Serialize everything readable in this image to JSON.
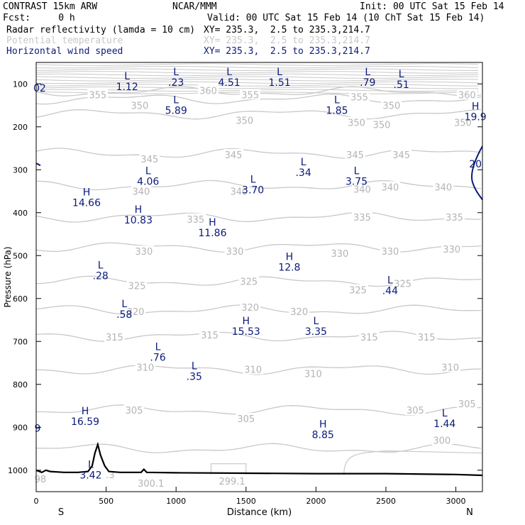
{
  "header": {
    "model": "CONTRAST 15km ARW",
    "center": "NCAR/MMM",
    "init": "Init: 00 UTC Sat 15 Feb 14",
    "fcst": "Fcst:     0 h",
    "valid": "Valid: 00 UTC Sat 15 Feb 14 (10 ChT Sat 15 Feb 14)",
    "fields": [
      {
        "label": "Radar reflectivity (lamda = 10 cm)",
        "xy": "XY= 235.3,  2.5 to 235.3,214.7",
        "color": "#000000"
      },
      {
        "label": "Potential temperature",
        "xy": "XY= 235.3,  2.5 to 235.3,214.7",
        "color": "#c8c8c8"
      },
      {
        "label": "Horizontal wind speed",
        "xy": "XY= 235.3,  2.5 to 235.3,214.7",
        "color": "#0a1a7a"
      }
    ]
  },
  "chart_data": {
    "type": "cross-section contour",
    "xlabel": "Distance (km)",
    "ylabel": "Pressure (hPa)",
    "xlim": [
      0,
      3190
    ],
    "ylim": [
      1050,
      50
    ],
    "x_ticks": [
      0,
      500,
      1000,
      1500,
      2000,
      2500,
      3000
    ],
    "y_ticks": [
      100,
      200,
      300,
      400,
      500,
      600,
      700,
      800,
      900,
      1000
    ],
    "x_end_labels": {
      "left": "S",
      "right": "N"
    },
    "theta_contours": [
      {
        "value": 360,
        "p": 118
      },
      {
        "value": 355,
        "p": 135
      },
      {
        "value": 350,
        "p": 170
      },
      {
        "value": 345,
        "p": 262
      },
      {
        "value": 340,
        "p": 337
      },
      {
        "value": 335,
        "p": 410
      },
      {
        "value": 330,
        "p": 480
      },
      {
        "value": 325,
        "p": 560
      },
      {
        "value": 320,
        "p": 627
      },
      {
        "value": 315,
        "p": 688
      },
      {
        "value": 310,
        "p": 765
      },
      {
        "value": 305,
        "p": 860
      },
      {
        "value": 300,
        "p": 950
      }
    ],
    "theta_labels": [
      {
        "text": "355",
        "x": 440,
        "p": 125
      },
      {
        "text": "360",
        "x": 1230,
        "p": 115
      },
      {
        "text": "355",
        "x": 1530,
        "p": 125
      },
      {
        "text": "355",
        "x": 2310,
        "p": 130
      },
      {
        "text": "350",
        "x": 2540,
        "p": 150
      },
      {
        "text": "360",
        "x": 3080,
        "p": 125
      },
      {
        "text": "350",
        "x": 740,
        "p": 150
      },
      {
        "text": "350",
        "x": 1490,
        "p": 185
      },
      {
        "text": "350",
        "x": 2290,
        "p": 190
      },
      {
        "text": "350",
        "x": 2470,
        "p": 195
      },
      {
        "text": "350",
        "x": 3050,
        "p": 190
      },
      {
        "text": "345",
        "x": 810,
        "p": 275
      },
      {
        "text": "345",
        "x": 1410,
        "p": 265
      },
      {
        "text": "345",
        "x": 2280,
        "p": 265
      },
      {
        "text": "345",
        "x": 2610,
        "p": 265
      },
      {
        "text": "340",
        "x": 750,
        "p": 350
      },
      {
        "text": "340",
        "x": 1450,
        "p": 350
      },
      {
        "text": "340",
        "x": 2330,
        "p": 345
      },
      {
        "text": "340",
        "x": 2530,
        "p": 340
      },
      {
        "text": "340",
        "x": 2910,
        "p": 340
      },
      {
        "text": "335",
        "x": 1140,
        "p": 415
      },
      {
        "text": "335",
        "x": 2330,
        "p": 410
      },
      {
        "text": "335",
        "x": 2990,
        "p": 410
      },
      {
        "text": "330",
        "x": 770,
        "p": 490
      },
      {
        "text": "330",
        "x": 1420,
        "p": 490
      },
      {
        "text": "330",
        "x": 2170,
        "p": 495
      },
      {
        "text": "330",
        "x": 2530,
        "p": 490
      },
      {
        "text": "330",
        "x": 2970,
        "p": 485
      },
      {
        "text": "325",
        "x": 720,
        "p": 570
      },
      {
        "text": "325",
        "x": 1520,
        "p": 560
      },
      {
        "text": "325",
        "x": 2300,
        "p": 580
      },
      {
        "text": "325",
        "x": 2620,
        "p": 565
      },
      {
        "text": "320",
        "x": 710,
        "p": 630
      },
      {
        "text": "320",
        "x": 1530,
        "p": 620
      },
      {
        "text": "320",
        "x": 1880,
        "p": 630
      },
      {
        "text": "315",
        "x": 560,
        "p": 690
      },
      {
        "text": "315",
        "x": 1240,
        "p": 685
      },
      {
        "text": "315",
        "x": 2380,
        "p": 690
      },
      {
        "text": "315",
        "x": 2790,
        "p": 690
      },
      {
        "text": "310",
        "x": 780,
        "p": 760
      },
      {
        "text": "310",
        "x": 1550,
        "p": 765
      },
      {
        "text": "310",
        "x": 1980,
        "p": 775
      },
      {
        "text": "310",
        "x": 2960,
        "p": 760
      },
      {
        "text": "305",
        "x": 700,
        "p": 860
      },
      {
        "text": "305",
        "x": 1500,
        "p": 880
      },
      {
        "text": "305",
        "x": 2710,
        "p": 860
      },
      {
        "text": "305",
        "x": 3080,
        "p": 845
      },
      {
        "text": "300",
        "x": 2900,
        "p": 930
      },
      {
        "text": ".3",
        "x": 530,
        "p": 1010
      },
      {
        "text": "300.1",
        "x": 820,
        "p": 1030
      },
      {
        "text": "299.1",
        "x": 1400,
        "p": 1025
      },
      {
        "text": "98",
        "x": 30,
        "p": 1020
      }
    ],
    "wind_extrema": [
      {
        "type": "L",
        "value": "1.12",
        "x": 650,
        "p": 90
      },
      {
        "type": "L",
        "value": ".23",
        "x": 1000,
        "p": 80
      },
      {
        "type": "L",
        "value": "4.51",
        "x": 1380,
        "p": 80
      },
      {
        "type": "L",
        "value": "1.51",
        "x": 1740,
        "p": 80
      },
      {
        "type": "L",
        "value": ".79",
        "x": 2370,
        "p": 80
      },
      {
        "type": "L",
        "value": ".51",
        "x": 2610,
        "p": 85
      },
      {
        "type": "L",
        "value": "5.89",
        "x": 1000,
        "p": 145
      },
      {
        "type": "L",
        "value": "1.85",
        "x": 2150,
        "p": 145
      },
      {
        "type": "H",
        "value": "19.9",
        "x": 3140,
        "p": 160
      },
      {
        "type": "L",
        "value": "4.06",
        "x": 800,
        "p": 310
      },
      {
        "type": "L",
        "value": ".34",
        "x": 1910,
        "p": 290
      },
      {
        "type": "L",
        "value": "3.75",
        "x": 2290,
        "p": 310
      },
      {
        "type": "L",
        "value": "3.70",
        "x": 1550,
        "p": 330
      },
      {
        "type": "H",
        "value": "14.66",
        "x": 360,
        "p": 360
      },
      {
        "type": "H",
        "value": "10.83",
        "x": 730,
        "p": 400
      },
      {
        "type": "H",
        "value": "11.86",
        "x": 1260,
        "p": 430
      },
      {
        "type": "H",
        "value": "12.8",
        "x": 1810,
        "p": 510
      },
      {
        "type": "L",
        "value": ".28",
        "x": 460,
        "p": 530
      },
      {
        "type": "L",
        "value": ".44",
        "x": 2530,
        "p": 565
      },
      {
        "type": "L",
        "value": ".58",
        "x": 630,
        "p": 620
      },
      {
        "type": "H",
        "value": "15.53",
        "x": 1500,
        "p": 660
      },
      {
        "type": "L",
        "value": "3.35",
        "x": 2000,
        "p": 660
      },
      {
        "type": "L",
        "value": ".76",
        "x": 870,
        "p": 720
      },
      {
        "type": "L",
        "value": ".35",
        "x": 1130,
        "p": 765
      },
      {
        "type": "H",
        "value": "16.59",
        "x": 350,
        "p": 870
      },
      {
        "type": "L",
        "value": "1.44",
        "x": 2920,
        "p": 875
      },
      {
        "type": "H",
        "value": "8.85",
        "x": 2050,
        "p": 900
      },
      {
        "type": "L",
        "value": "3.42",
        "x": 390,
        "p": 995
      }
    ],
    "partial_labels": [
      {
        "text": "02",
        "x": 25,
        "p": 118,
        "color": "#0a1a7a"
      },
      {
        "text": "20",
        "x": 3140,
        "p": 295,
        "color": "#0a1a7a"
      },
      {
        "text": "9",
        "x": 10,
        "p": 910,
        "color": "#0a1a7a"
      }
    ],
    "terrain_profile": [
      [
        0,
        1000
      ],
      [
        40,
        1005
      ],
      [
        70,
        1000
      ],
      [
        100,
        1003
      ],
      [
        200,
        1005
      ],
      [
        300,
        1005
      ],
      [
        370,
        1003
      ],
      [
        400,
        990
      ],
      [
        420,
        960
      ],
      [
        440,
        940
      ],
      [
        460,
        965
      ],
      [
        490,
        990
      ],
      [
        520,
        1003
      ],
      [
        600,
        1005
      ],
      [
        750,
        1005
      ],
      [
        770,
        998
      ],
      [
        790,
        1005
      ],
      [
        1000,
        1006
      ],
      [
        1500,
        1007
      ],
      [
        2000,
        1008
      ],
      [
        2500,
        1008
      ],
      [
        3000,
        1010
      ],
      [
        3190,
        1012
      ]
    ]
  }
}
